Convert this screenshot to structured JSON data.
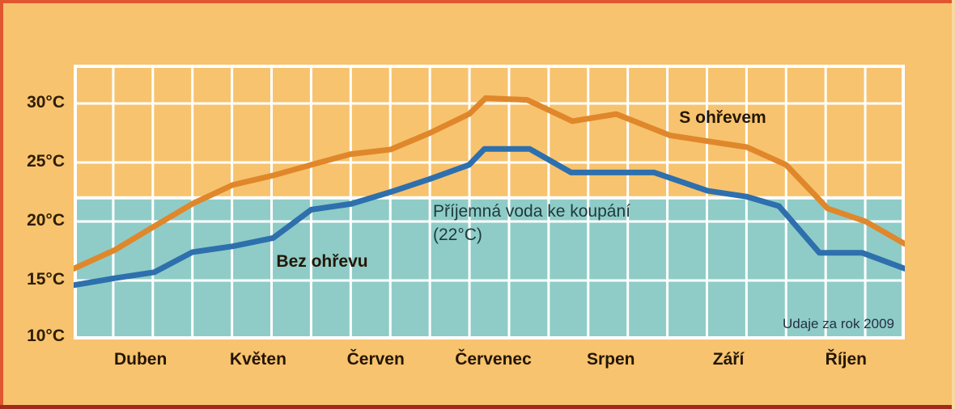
{
  "colors": {
    "background": "#f7c36e",
    "frame_top_left": "#e0562f",
    "frame_bottom": "#a2291d",
    "frame_right": "#f9d7a2",
    "grid": "#ffffff",
    "comfort_zone_fill": "#8fccc7",
    "series_heated": "#e0872b",
    "series_unheated": "#2e6fad",
    "axis_text": "#2e1d06",
    "label_text": "#241605",
    "comfort_text": "#1c3a3c",
    "note_text": "#233044"
  },
  "chart_data": {
    "type": "line",
    "title": "",
    "xlabel": "",
    "ylabel": "",
    "categories": [
      "Duben",
      "Květen",
      "Červen",
      "Červenec",
      "Srpen",
      "Září",
      "Říjen"
    ],
    "x_unit": "months (0 = start of Duben, 7 = end of Říjen; points at ~1/3-month steps)",
    "y_axis": {
      "tick_labels": [
        "30°C",
        "25°C",
        "20°C",
        "15°C",
        "10°C"
      ],
      "tick_values": [
        30,
        25,
        20,
        15,
        10
      ],
      "ylim": [
        10,
        33.3
      ]
    },
    "grid": {
      "vertical_divisions": 21,
      "horizontal_line_temps": [
        30,
        25,
        20,
        15
      ],
      "color": "#ffffff"
    },
    "series": [
      {
        "name": "S ohřevem",
        "color": "#e0872b",
        "points": [
          [
            0,
            16.0
          ],
          [
            0.35,
            17.6
          ],
          [
            0.68,
            19.6
          ],
          [
            1.0,
            21.5
          ],
          [
            1.34,
            23.1
          ],
          [
            1.68,
            23.9
          ],
          [
            2.0,
            24.8
          ],
          [
            2.33,
            25.7
          ],
          [
            2.67,
            26.1
          ],
          [
            3.0,
            27.5
          ],
          [
            3.33,
            29.1
          ],
          [
            3.47,
            30.45
          ],
          [
            3.82,
            30.3
          ],
          [
            4.2,
            28.5
          ],
          [
            4.57,
            29.1
          ],
          [
            5.02,
            27.3
          ],
          [
            5.34,
            26.8
          ],
          [
            5.67,
            26.3
          ],
          [
            6.0,
            24.8
          ],
          [
            6.35,
            21.1
          ],
          [
            6.67,
            20.0
          ],
          [
            7.0,
            18.1
          ]
        ]
      },
      {
        "name": "Bez ohřevu",
        "color": "#2e6fad",
        "points": [
          [
            0,
            14.6
          ],
          [
            0.35,
            15.2
          ],
          [
            0.68,
            15.7
          ],
          [
            1.0,
            17.4
          ],
          [
            1.34,
            17.9
          ],
          [
            1.68,
            18.6
          ],
          [
            2.0,
            21.0
          ],
          [
            2.34,
            21.5
          ],
          [
            2.67,
            22.5
          ],
          [
            3.0,
            23.6
          ],
          [
            3.33,
            24.8
          ],
          [
            3.46,
            26.15
          ],
          [
            3.84,
            26.15
          ],
          [
            4.19,
            24.15
          ],
          [
            4.89,
            24.15
          ],
          [
            5.34,
            22.6
          ],
          [
            5.67,
            22.1
          ],
          [
            5.94,
            21.3
          ],
          [
            6.28,
            17.35
          ],
          [
            6.64,
            17.35
          ],
          [
            7.0,
            16.0
          ]
        ]
      }
    ],
    "comfort_zone": {
      "label_line1": "Příjemná voda ke koupání",
      "label_line2": "(22°C)",
      "max_temp": 22,
      "fill": "#8fccc7"
    },
    "note": "Udaje za rok 2009",
    "legend_position": "inline-annotations"
  }
}
